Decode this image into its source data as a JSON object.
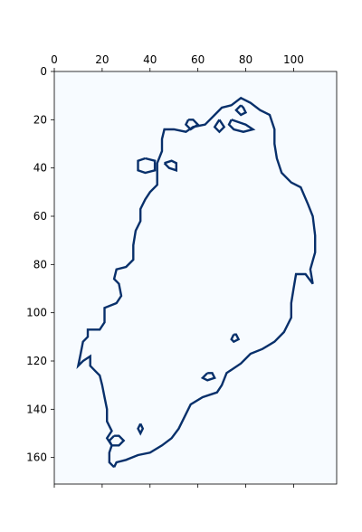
{
  "chart_data": {
    "type": "heatmap",
    "title": "",
    "xlabel": "",
    "ylabel": "",
    "grid": false,
    "xlim": [
      0,
      118
    ],
    "ylim": [
      171,
      0
    ],
    "x_ticks": [
      0,
      20,
      40,
      60,
      80,
      100
    ],
    "y_ticks": [
      0,
      20,
      40,
      60,
      80,
      100,
      120,
      140,
      160
    ],
    "x_tick_labels": [
      "0",
      "20",
      "40",
      "60",
      "80",
      "100"
    ],
    "y_tick_labels": [
      "0",
      "20",
      "40",
      "60",
      "80",
      "100",
      "120",
      "140",
      "160"
    ],
    "background_color": "#f7fbff",
    "foreground_color": "#08306b",
    "outline": [
      [
        25,
        164
      ],
      [
        23,
        162
      ],
      [
        23,
        158
      ],
      [
        24,
        155
      ],
      [
        22,
        152
      ],
      [
        24,
        149
      ],
      [
        22,
        145
      ],
      [
        22,
        140
      ],
      [
        21,
        135
      ],
      [
        20,
        130
      ],
      [
        19,
        126
      ],
      [
        17,
        124
      ],
      [
        15,
        122
      ],
      [
        15,
        118
      ],
      [
        12,
        120
      ],
      [
        10,
        122
      ],
      [
        11,
        117
      ],
      [
        12,
        112
      ],
      [
        14,
        110
      ],
      [
        14,
        107
      ],
      [
        19,
        107
      ],
      [
        21,
        104
      ],
      [
        21,
        98
      ],
      [
        26,
        96
      ],
      [
        28,
        93
      ],
      [
        27,
        88
      ],
      [
        25,
        86
      ],
      [
        26,
        82
      ],
      [
        30,
        81
      ],
      [
        33,
        78
      ],
      [
        33,
        72
      ],
      [
        34,
        66
      ],
      [
        36,
        62
      ],
      [
        36,
        57
      ],
      [
        38,
        53
      ],
      [
        40,
        50
      ],
      [
        43,
        47
      ],
      [
        43,
        43
      ],
      [
        43,
        38
      ],
      [
        45,
        33
      ],
      [
        45,
        28
      ],
      [
        46,
        24
      ],
      [
        50,
        24
      ],
      [
        55,
        25
      ],
      [
        58,
        23
      ],
      [
        63,
        22
      ],
      [
        67,
        18
      ],
      [
        70,
        15
      ],
      [
        74,
        14
      ],
      [
        78,
        11
      ],
      [
        82,
        13
      ],
      [
        86,
        16
      ],
      [
        90,
        18
      ],
      [
        92,
        24
      ],
      [
        92,
        30
      ],
      [
        93,
        36
      ],
      [
        95,
        42
      ],
      [
        99,
        46
      ],
      [
        103,
        48
      ],
      [
        106,
        55
      ],
      [
        108,
        60
      ],
      [
        109,
        68
      ],
      [
        109,
        75
      ],
      [
        107,
        82
      ],
      [
        108,
        88
      ],
      [
        105,
        84
      ],
      [
        101,
        84
      ],
      [
        100,
        90
      ],
      [
        99,
        96
      ],
      [
        99,
        102
      ],
      [
        96,
        108
      ],
      [
        92,
        112
      ],
      [
        87,
        115
      ],
      [
        82,
        117
      ],
      [
        78,
        121
      ],
      [
        72,
        125
      ],
      [
        70,
        130
      ],
      [
        68,
        133
      ],
      [
        62,
        135
      ],
      [
        57,
        138
      ],
      [
        55,
        142
      ],
      [
        52,
        148
      ],
      [
        49,
        152
      ],
      [
        45,
        155
      ],
      [
        40,
        158
      ],
      [
        35,
        159
      ],
      [
        30,
        161
      ],
      [
        26,
        162
      ],
      [
        25,
        164
      ]
    ],
    "islands": [
      [
        [
          38,
          36
        ],
        [
          35,
          37
        ],
        [
          35,
          41
        ],
        [
          38,
          42
        ],
        [
          42,
          41
        ],
        [
          42,
          37
        ],
        [
          38,
          36
        ]
      ],
      [
        [
          46,
          38
        ],
        [
          48,
          40
        ],
        [
          51,
          41
        ],
        [
          51,
          38
        ],
        [
          49,
          37
        ],
        [
          46,
          38
        ]
      ],
      [
        [
          56,
          20
        ],
        [
          55,
          22
        ],
        [
          57,
          24
        ],
        [
          60,
          22
        ],
        [
          58,
          20
        ],
        [
          56,
          20
        ]
      ],
      [
        [
          69,
          20
        ],
        [
          67,
          23
        ],
        [
          69,
          25
        ],
        [
          71,
          23
        ],
        [
          69,
          20
        ]
      ],
      [
        [
          74,
          20
        ],
        [
          73,
          22
        ],
        [
          75,
          24
        ],
        [
          79,
          25
        ],
        [
          83,
          24
        ],
        [
          80,
          22
        ],
        [
          77,
          21
        ],
        [
          74,
          20
        ]
      ],
      [
        [
          78,
          14
        ],
        [
          76,
          16
        ],
        [
          78,
          18
        ],
        [
          80,
          17
        ],
        [
          79,
          15
        ],
        [
          78,
          14
        ]
      ],
      [
        [
          75,
          109
        ],
        [
          74,
          111
        ],
        [
          75,
          112
        ],
        [
          77,
          111
        ],
        [
          76,
          109
        ],
        [
          75,
          109
        ]
      ],
      [
        [
          36,
          146
        ],
        [
          35,
          148
        ],
        [
          36,
          150
        ],
        [
          37,
          148
        ],
        [
          36,
          146
        ]
      ],
      [
        [
          25,
          151
        ],
        [
          23,
          153
        ],
        [
          24,
          155
        ],
        [
          27,
          155
        ],
        [
          29,
          153
        ],
        [
          27,
          151
        ],
        [
          25,
          151
        ]
      ],
      [
        [
          64,
          125
        ],
        [
          62,
          127
        ],
        [
          64,
          128
        ],
        [
          67,
          127
        ],
        [
          66,
          125
        ],
        [
          64,
          125
        ]
      ]
    ]
  }
}
